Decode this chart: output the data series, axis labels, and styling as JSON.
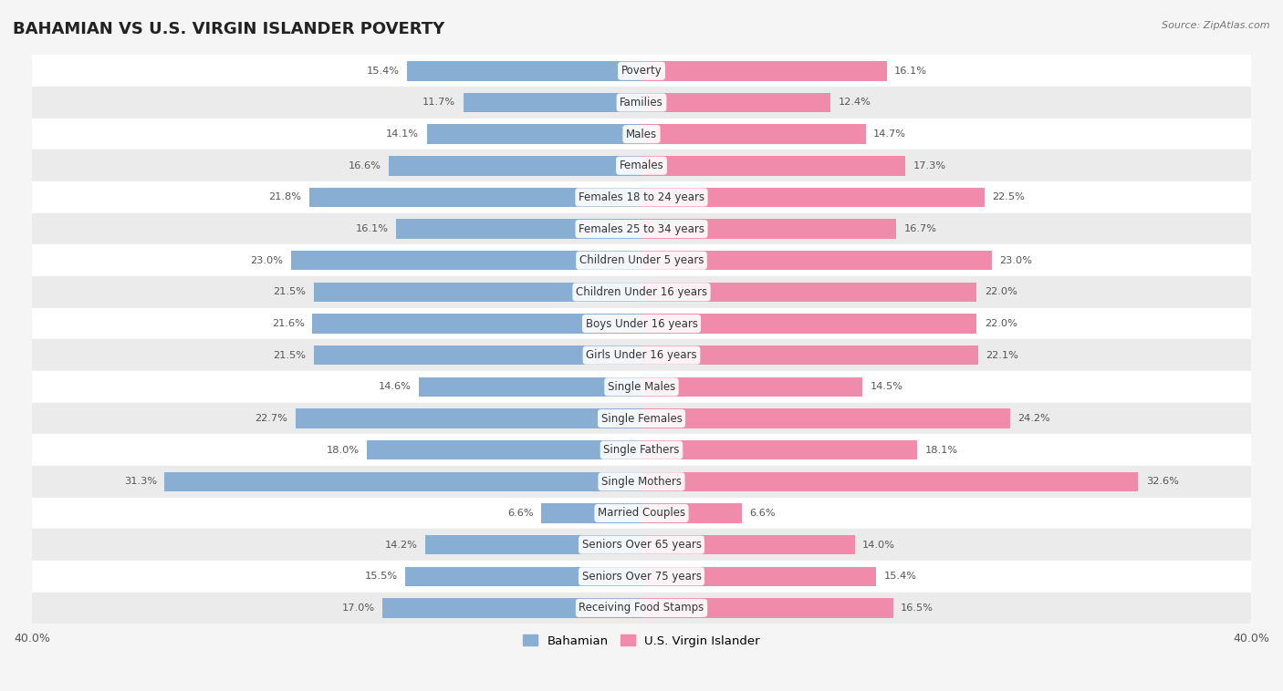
{
  "title": "BAHAMIAN VS U.S. VIRGIN ISLANDER POVERTY",
  "source": "Source: ZipAtlas.com",
  "categories": [
    "Poverty",
    "Families",
    "Males",
    "Females",
    "Females 18 to 24 years",
    "Females 25 to 34 years",
    "Children Under 5 years",
    "Children Under 16 years",
    "Boys Under 16 years",
    "Girls Under 16 years",
    "Single Males",
    "Single Females",
    "Single Fathers",
    "Single Mothers",
    "Married Couples",
    "Seniors Over 65 years",
    "Seniors Over 75 years",
    "Receiving Food Stamps"
  ],
  "bahamian": [
    15.4,
    11.7,
    14.1,
    16.6,
    21.8,
    16.1,
    23.0,
    21.5,
    21.6,
    21.5,
    14.6,
    22.7,
    18.0,
    31.3,
    6.6,
    14.2,
    15.5,
    17.0
  ],
  "virgin_islander": [
    16.1,
    12.4,
    14.7,
    17.3,
    22.5,
    16.7,
    23.0,
    22.0,
    22.0,
    22.1,
    14.5,
    24.2,
    18.1,
    32.6,
    6.6,
    14.0,
    15.4,
    16.5
  ],
  "bahamian_color": "#89aed4",
  "virgin_islander_color": "#f08bab",
  "bahamian_label": "Bahamian",
  "virgin_islander_label": "U.S. Virgin Islander",
  "xlim": 40.0,
  "bar_height": 0.62,
  "bg_color": "#f5f5f5",
  "row_colors": [
    "#ffffff",
    "#ebebeb"
  ],
  "title_fontsize": 13,
  "label_fontsize": 8.5,
  "value_fontsize": 8.2,
  "axis_label_fontsize": 9
}
